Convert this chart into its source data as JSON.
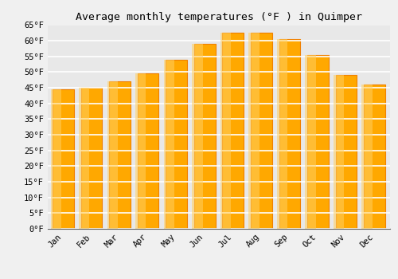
{
  "months": [
    "Jan",
    "Feb",
    "Mar",
    "Apr",
    "May",
    "Jun",
    "Jul",
    "Aug",
    "Sep",
    "Oct",
    "Nov",
    "Dec"
  ],
  "values": [
    44.5,
    45.0,
    47.0,
    49.5,
    54.0,
    59.0,
    62.5,
    62.5,
    60.5,
    55.5,
    49.0,
    46.0
  ],
  "bar_color_face": "#FFA800",
  "bar_color_light": "#FFD060",
  "bar_color_edge": "#F08000",
  "title": "Average monthly temperatures (°F ) in Quimper",
  "ylim": [
    0,
    65
  ],
  "ytick_step": 5,
  "background_color": "#f0f0f0",
  "plot_bg_color": "#e8e8e8",
  "grid_color": "#ffffff",
  "title_fontsize": 9.5,
  "tick_fontsize": 7.5,
  "tick_font": "monospace"
}
